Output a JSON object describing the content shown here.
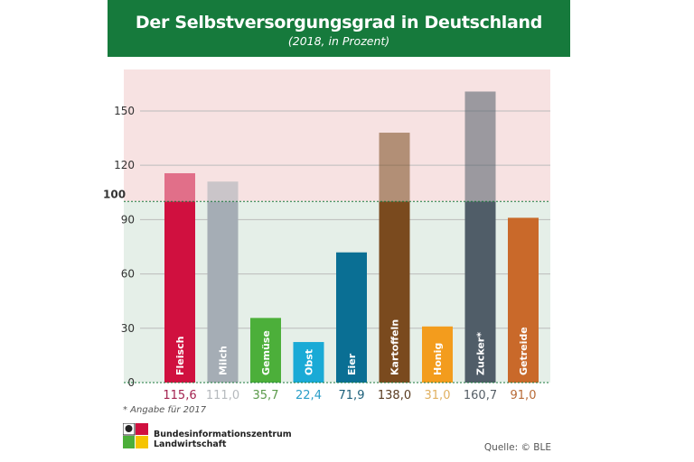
{
  "chart_data": {
    "type": "bar",
    "title": "Der Selbstversorgungsgrad in Deutschland",
    "subtitle": "(2018, in Prozent)",
    "categories": [
      "Fleisch",
      "Milch",
      "Gemüse",
      "Obst",
      "Eier",
      "Kartoffeln",
      "Honig",
      "Zucker*",
      "Getreide"
    ],
    "values": [
      115.6,
      111.0,
      35.7,
      22.4,
      71.9,
      138.0,
      31.0,
      160.7,
      91.0
    ],
    "value_labels": [
      "115,6",
      "111,0",
      "35,7",
      "22,4",
      "71,9",
      "138,0",
      "31,0",
      "160,7",
      "91,0"
    ],
    "colors": [
      "#d0103f",
      "#a5adb5",
      "#4caf3a",
      "#1aaad6",
      "#0a6f94",
      "#7a4a1e",
      "#f39c1d",
      "#505d68",
      "#c9692a"
    ],
    "label_colors": [
      "#a3224f",
      "#b5b9bd",
      "#5a9a4a",
      "#2a9ec8",
      "#1c5f7a",
      "#5a3c22",
      "#e0b060",
      "#555e66",
      "#b86a36"
    ],
    "yticks": [
      0,
      30,
      60,
      90,
      120,
      150
    ],
    "reference_line": {
      "value": 100,
      "label": "100"
    },
    "ylim": [
      0,
      170
    ],
    "grid": true,
    "background_colors": {
      "above_reference": "#f7e2e2",
      "below_reference": "#e5efe8"
    }
  },
  "footnote": "* Angabe für 2017",
  "organization": [
    "Bundesinformationszentrum",
    "Landwirtschaft"
  ],
  "source": "Quelle: © BLE"
}
